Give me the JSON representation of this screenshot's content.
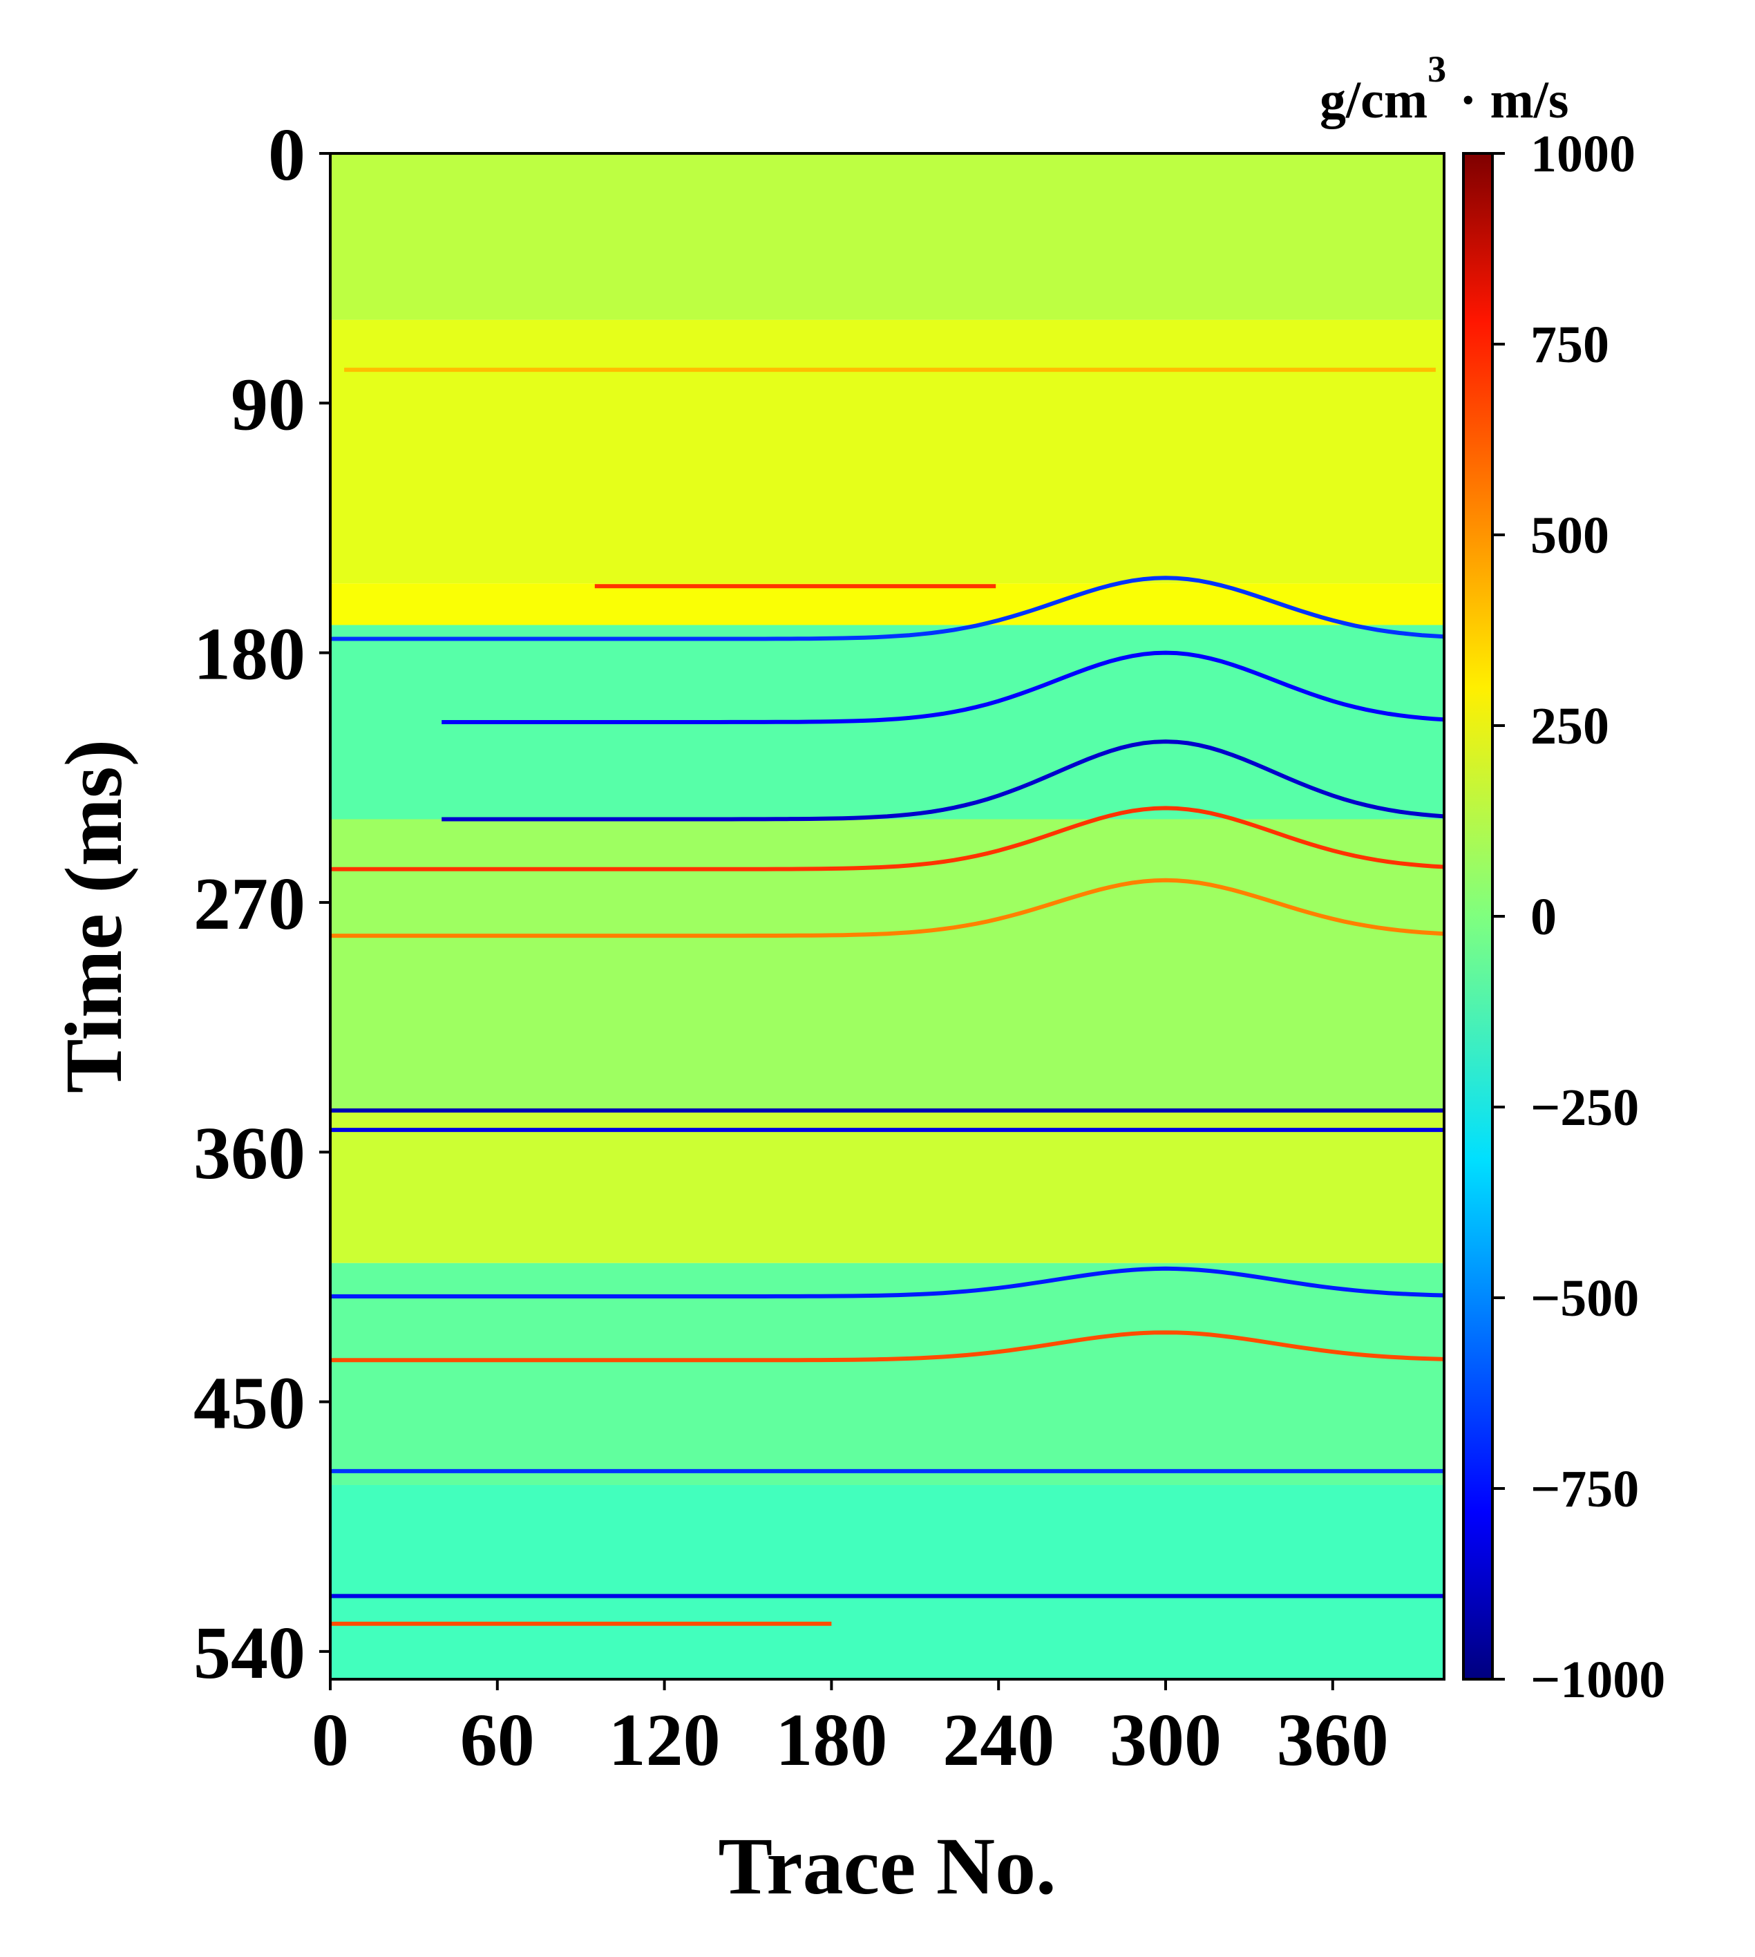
{
  "chart_data": {
    "type": "heatmap",
    "title": "",
    "xlabel": "Trace No.",
    "ylabel": "Time (ms)",
    "xlim": [
      0,
      400
    ],
    "ylim": [
      0,
      550
    ],
    "y_inverted": true,
    "x_ticks": [
      0,
      60,
      120,
      180,
      240,
      300,
      360
    ],
    "y_ticks": [
      0,
      90,
      180,
      270,
      360,
      450,
      540
    ],
    "colormap": "jet",
    "colorbar": {
      "unit_main": "g/cm",
      "unit_exp": "3",
      "unit_rest": " · m/s",
      "range": [
        -1000,
        1000
      ],
      "ticks": [
        1000,
        750,
        500,
        250,
        0,
        -250,
        -500,
        -750,
        -1000
      ],
      "tick_labels": [
        "1000",
        "750",
        "500",
        "250",
        "0",
        "−250",
        "−500",
        "−750",
        "−1000"
      ]
    },
    "background_bands": [
      {
        "t0": 0,
        "t1": 60,
        "v": 120
      },
      {
        "t0": 60,
        "t1": 155,
        "v": 200
      },
      {
        "t0": 155,
        "t1": 170,
        "v": 240
      },
      {
        "t0": 170,
        "t1": 240,
        "v": -80
      },
      {
        "t0": 240,
        "t1": 345,
        "v": 60
      },
      {
        "t0": 345,
        "t1": 400,
        "v": 150
      },
      {
        "t0": 400,
        "t1": 480,
        "v": -60
      },
      {
        "t0": 480,
        "t1": 550,
        "v": -120
      }
    ],
    "reflectors": [
      {
        "t": 78,
        "v": 380,
        "x0": 5,
        "x1": 400,
        "amp": 0
      },
      {
        "t": 156,
        "v": 650,
        "x0": 95,
        "x1": 240,
        "amp": 0
      },
      {
        "t": 175,
        "v": -650,
        "x0": 0,
        "x1": 400,
        "amp": 22
      },
      {
        "t": 205,
        "v": -750,
        "x0": 40,
        "x1": 400,
        "amp": 25
      },
      {
        "t": 240,
        "v": -850,
        "x0": 40,
        "x1": 400,
        "amp": 28
      },
      {
        "t": 258,
        "v": 650,
        "x0": 0,
        "x1": 400,
        "amp": 22
      },
      {
        "t": 282,
        "v": 500,
        "x0": 0,
        "x1": 400,
        "amp": 20
      },
      {
        "t": 345,
        "v": -900,
        "x0": 0,
        "x1": 400,
        "amp": 0
      },
      {
        "t": 352,
        "v": -800,
        "x0": 0,
        "x1": 400,
        "amp": 0
      },
      {
        "t": 412,
        "v": -700,
        "x0": 0,
        "x1": 400,
        "amp": 10
      },
      {
        "t": 435,
        "v": 600,
        "x0": 0,
        "x1": 400,
        "amp": 10
      },
      {
        "t": 475,
        "v": -650,
        "x0": 0,
        "x1": 400,
        "amp": 0
      },
      {
        "t": 520,
        "v": -800,
        "x0": 0,
        "x1": 400,
        "amp": 0
      },
      {
        "t": 530,
        "v": 600,
        "x0": 0,
        "x1": 180,
        "amp": 0
      }
    ]
  }
}
